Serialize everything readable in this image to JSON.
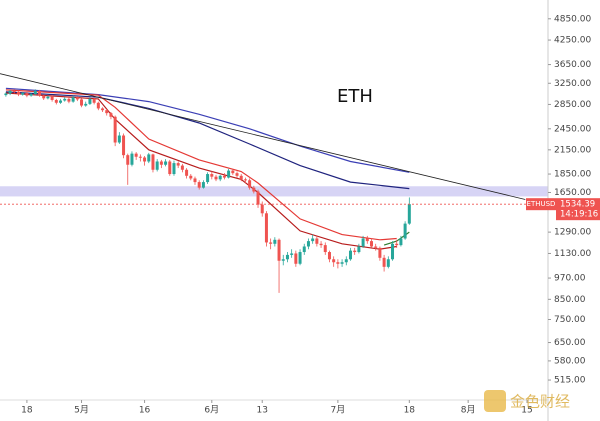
{
  "chart_data": {
    "type": "candlestick",
    "title": "ETH",
    "symbol": "ETHUSD",
    "countdown": "14:19:16",
    "watermark": "金色财经",
    "yscale": "log",
    "grid": false,
    "up_color": "#26a69a",
    "down_color": "#ef5350",
    "xlim": [
      -6.4,
      124
    ],
    "ylim": [
      455,
      5450
    ],
    "xticks": [
      {
        "value": 0,
        "label": "18"
      },
      {
        "value": 13,
        "label": "5月"
      },
      {
        "value": 28,
        "label": "16"
      },
      {
        "value": 44,
        "label": "6月"
      },
      {
        "value": 56,
        "label": "13"
      },
      {
        "value": 74,
        "label": "7月"
      },
      {
        "value": 91,
        "label": "18"
      },
      {
        "value": 105,
        "label": "8月"
      },
      {
        "value": 119,
        "label": "15"
      }
    ],
    "yticks": [
      {
        "value": 4850,
        "label": "4850.00"
      },
      {
        "value": 4250,
        "label": "4250.00"
      },
      {
        "value": 3650,
        "label": "3650.00"
      },
      {
        "value": 3250,
        "label": "3250.00"
      },
      {
        "value": 2850,
        "label": "2850.00"
      },
      {
        "value": 2450,
        "label": "2450.00"
      },
      {
        "value": 2150,
        "label": "2150.00"
      },
      {
        "value": 1850,
        "label": "1850.00"
      },
      {
        "value": 1650,
        "label": "1650.00"
      },
      {
        "value": 1290,
        "label": "1290.00"
      },
      {
        "value": 1130,
        "label": "1130.00"
      },
      {
        "value": 970,
        "label": "970.00"
      },
      {
        "value": 850,
        "label": "850.00"
      },
      {
        "value": 750,
        "label": "750.00"
      },
      {
        "value": 650,
        "label": "650.00"
      },
      {
        "value": 580,
        "label": "580.00"
      },
      {
        "value": 515,
        "label": "515.00"
      }
    ],
    "x": [
      -5,
      -4,
      -3,
      -2,
      -1,
      0,
      1,
      2,
      3,
      4,
      5,
      6,
      7,
      8,
      9,
      10,
      11,
      12,
      13,
      14,
      15,
      16,
      17,
      18,
      19,
      20,
      21,
      22,
      23,
      24,
      25,
      26,
      27,
      28,
      29,
      30,
      31,
      32,
      33,
      34,
      35,
      36,
      37,
      38,
      39,
      40,
      41,
      42,
      43,
      44,
      45,
      46,
      47,
      48,
      49,
      50,
      51,
      52,
      53,
      54,
      55,
      56,
      57,
      58,
      59,
      60,
      61,
      62,
      63,
      64,
      65,
      66,
      67,
      68,
      69,
      70,
      71,
      72,
      73,
      74,
      75,
      76,
      77,
      78,
      79,
      80,
      81,
      82,
      83,
      84,
      85,
      86,
      87,
      88,
      89,
      90,
      91
    ],
    "open": [
      3020,
      3050,
      3100,
      3080,
      3030,
      3060,
      3010,
      3040,
      3100,
      3010,
      2960,
      2990,
      2930,
      2880,
      2920,
      2950,
      2900,
      2980,
      2940,
      2830,
      2860,
      2950,
      2880,
      2780,
      2750,
      2700,
      2640,
      2250,
      2350,
      2080,
      1960,
      2100,
      2060,
      2050,
      2000,
      2090,
      1900,
      2000,
      1960,
      2000,
      1850,
      1980,
      1950,
      1900,
      1830,
      1800,
      1760,
      1700,
      1760,
      1850,
      1820,
      1790,
      1830,
      1810,
      1890,
      1860,
      1830,
      1790,
      1780,
      1700,
      1660,
      1530,
      1450,
      1210,
      1200,
      1230,
      1080,
      1090,
      1120,
      1130,
      1060,
      1140,
      1180,
      1220,
      1240,
      1200,
      1190,
      1140,
      1090,
      1070,
      1060,
      1070,
      1090,
      1150,
      1140,
      1180,
      1240,
      1220,
      1180,
      1170,
      1100,
      1040,
      1090,
      1200,
      1190,
      1240,
      1360
    ],
    "high": [
      3070,
      3120,
      3130,
      3110,
      3080,
      3080,
      3060,
      3130,
      3120,
      3030,
      3010,
      3010,
      2950,
      2950,
      2980,
      2970,
      3010,
      3000,
      2960,
      2900,
      2980,
      2970,
      2900,
      2800,
      2770,
      2720,
      2660,
      2400,
      2380,
      2100,
      2130,
      2120,
      2090,
      2070,
      2110,
      2100,
      2030,
      2020,
      2030,
      2020,
      2010,
      2000,
      1970,
      1920,
      1850,
      1820,
      1780,
      1780,
      1870,
      1880,
      1840,
      1840,
      1860,
      1910,
      1910,
      1880,
      1850,
      1810,
      1800,
      1720,
      1680,
      1560,
      1470,
      1240,
      1250,
      1240,
      1120,
      1140,
      1160,
      1150,
      1160,
      1200,
      1240,
      1270,
      1260,
      1220,
      1210,
      1150,
      1110,
      1090,
      1090,
      1110,
      1170,
      1170,
      1200,
      1260,
      1260,
      1240,
      1200,
      1180,
      1120,
      1110,
      1220,
      1230,
      1260,
      1380,
      1600
    ],
    "low": [
      2990,
      3020,
      3050,
      3000,
      3010,
      2980,
      2990,
      3020,
      2990,
      2930,
      2940,
      2900,
      2850,
      2860,
      2900,
      2870,
      2880,
      2910,
      2800,
      2810,
      2840,
      2850,
      2750,
      2720,
      2660,
      2600,
      2200,
      2230,
      2040,
      1730,
      1940,
      2020,
      2000,
      1950,
      1980,
      1870,
      1880,
      1920,
      1940,
      1830,
      1830,
      1920,
      1870,
      1800,
      1780,
      1730,
      1680,
      1690,
      1740,
      1790,
      1770,
      1770,
      1790,
      1800,
      1840,
      1810,
      1770,
      1750,
      1680,
      1640,
      1500,
      1420,
      1180,
      1160,
      1180,
      885,
      1050,
      1070,
      1100,
      1040,
      1050,
      1120,
      1160,
      1200,
      1180,
      1170,
      1120,
      1070,
      1040,
      1030,
      1040,
      1050,
      1080,
      1120,
      1130,
      1170,
      1200,
      1170,
      1150,
      1080,
      1010,
      1030,
      1080,
      1170,
      1180,
      1230,
      1350
    ],
    "close": [
      3050,
      3100,
      3080,
      3030,
      3060,
      3010,
      3040,
      3100,
      3010,
      2960,
      2990,
      2930,
      2880,
      2920,
      2950,
      2900,
      2980,
      2940,
      2830,
      2860,
      2950,
      2880,
      2780,
      2750,
      2700,
      2640,
      2250,
      2350,
      2080,
      1960,
      2100,
      2060,
      2050,
      2000,
      2090,
      1900,
      2000,
      1960,
      2000,
      1850,
      1980,
      1950,
      1900,
      1830,
      1800,
      1760,
      1700,
      1760,
      1850,
      1820,
      1790,
      1830,
      1810,
      1890,
      1860,
      1830,
      1790,
      1780,
      1700,
      1660,
      1530,
      1450,
      1210,
      1200,
      1230,
      1080,
      1090,
      1120,
      1130,
      1060,
      1140,
      1180,
      1220,
      1240,
      1200,
      1190,
      1140,
      1090,
      1070,
      1060,
      1070,
      1090,
      1150,
      1140,
      1180,
      1240,
      1220,
      1180,
      1170,
      1100,
      1040,
      1090,
      1200,
      1190,
      1240,
      1360,
      1534.39
    ],
    "zone": {
      "from": 1610,
      "to": 1715,
      "color": "#c9c6f2"
    },
    "lines": [
      {
        "color": "#3b3fb5",
        "x": [
          -5,
          17,
          29,
          41,
          53,
          65,
          77,
          91
        ],
        "values": [
          3150,
          3030,
          2900,
          2680,
          2450,
          2200,
          2000,
          1870
        ]
      },
      {
        "color": "#1f237e",
        "x": [
          -5,
          17,
          29,
          41,
          53,
          65,
          77,
          91
        ],
        "values": [
          3080,
          2980,
          2780,
          2540,
          2230,
          1950,
          1760,
          1690
        ]
      },
      {
        "color": "#e53935",
        "x": [
          -5,
          17,
          21,
          29,
          41,
          51,
          55,
          65,
          75,
          84,
          88
        ],
        "values": [
          3120,
          3020,
          2800,
          2300,
          2020,
          1880,
          1750,
          1400,
          1270,
          1230,
          1240
        ]
      },
      {
        "color": "#b71c1c",
        "x": [
          -5,
          17,
          21,
          29,
          41,
          51,
          55,
          65,
          75,
          84,
          88
        ],
        "values": [
          3060,
          2950,
          2600,
          2150,
          1920,
          1790,
          1650,
          1300,
          1200,
          1160,
          1180
        ]
      },
      {
        "color": "#2e7d32",
        "x": [
          85,
          88,
          91
        ],
        "values": [
          1190,
          1220,
          1290
        ]
      },
      {
        "color": "#222222",
        "x": [
          -6.4,
          118.6
        ],
        "values": [
          3450,
          1580
        ]
      }
    ]
  }
}
